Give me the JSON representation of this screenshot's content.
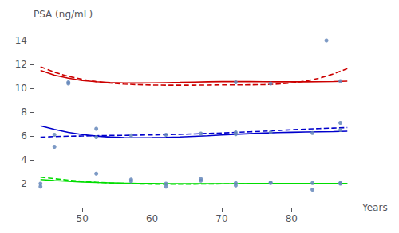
{
  "chart_data": {
    "type": "line",
    "xlabel": "Years",
    "ylabel": "PSA (ng/mL)",
    "xlim": [
      43,
      89
    ],
    "ylim": [
      0,
      15
    ],
    "xticks": [
      50,
      60,
      70,
      80
    ],
    "yticks": [
      2,
      4,
      6,
      8,
      10,
      12,
      14
    ],
    "grid": false,
    "series": [
      {
        "type": "scatter",
        "color": "#6688bb",
        "marker": "circle",
        "x": [
          44,
          44,
          46,
          46,
          48,
          48,
          52,
          52,
          52,
          57,
          57,
          57,
          62,
          62,
          62,
          67,
          67,
          67,
          72,
          72,
          72,
          72,
          72,
          77,
          77,
          77,
          77,
          83,
          83,
          83,
          85,
          87,
          87,
          87,
          87,
          87
        ],
        "values": [
          1.75,
          2.0,
          6.1,
          5.1,
          10.5,
          10.4,
          2.85,
          5.9,
          6.6,
          2.2,
          2.35,
          6.05,
          1.75,
          2.0,
          6.1,
          2.25,
          2.4,
          6.2,
          1.85,
          2.05,
          6.3,
          6.15,
          10.5,
          2.05,
          2.1,
          6.3,
          10.4,
          1.5,
          2.05,
          6.25,
          14.0,
          2.0,
          2.05,
          6.5,
          7.1,
          10.6
        ]
      },
      {
        "type": "line",
        "color": "#00dd00",
        "line_style": "solid",
        "x": [
          44,
          46,
          48,
          50,
          52,
          54,
          56,
          58,
          60,
          62,
          64,
          66,
          68,
          70,
          72,
          74,
          76,
          78,
          80,
          82,
          84,
          86,
          88
        ],
        "values": [
          2.35,
          2.27,
          2.2,
          2.14,
          2.1,
          2.07,
          2.04,
          2.02,
          2.01,
          2.0,
          1.99,
          1.99,
          1.99,
          2.0,
          2.0,
          2.01,
          2.01,
          2.02,
          2.02,
          2.02,
          2.02,
          2.02,
          2.02
        ]
      },
      {
        "type": "line",
        "color": "#00dd00",
        "line_style": "dashed",
        "x": [
          44,
          46,
          48,
          50,
          52,
          54,
          56,
          58,
          60,
          62,
          64,
          66,
          68,
          70,
          72,
          74,
          76,
          78,
          80,
          82,
          84,
          86,
          88
        ],
        "values": [
          2.55,
          2.42,
          2.3,
          2.2,
          2.12,
          2.06,
          2.01,
          1.98,
          1.96,
          1.95,
          1.95,
          1.96,
          1.97,
          1.98,
          1.99,
          2.0,
          2.0,
          2.01,
          2.01,
          2.01,
          2.02,
          2.02,
          2.02
        ]
      },
      {
        "type": "line",
        "color": "#0000cc",
        "line_style": "solid",
        "x": [
          44,
          46,
          48,
          50,
          52,
          54,
          56,
          58,
          60,
          62,
          64,
          66,
          68,
          70,
          72,
          74,
          76,
          78,
          80,
          82,
          84,
          86,
          88
        ],
        "values": [
          6.85,
          6.55,
          6.3,
          6.12,
          5.99,
          5.91,
          5.87,
          5.85,
          5.86,
          5.88,
          5.92,
          5.97,
          6.02,
          6.08,
          6.14,
          6.19,
          6.24,
          6.28,
          6.31,
          6.33,
          6.35,
          6.37,
          6.4
        ]
      },
      {
        "type": "line",
        "color": "#0000cc",
        "line_style": "dashed",
        "x": [
          44,
          46,
          48,
          50,
          52,
          54,
          56,
          58,
          60,
          62,
          64,
          66,
          68,
          70,
          72,
          74,
          76,
          78,
          80,
          82,
          84,
          86,
          88
        ],
        "values": [
          5.9,
          5.95,
          5.98,
          6.0,
          6.02,
          6.04,
          6.05,
          6.07,
          6.09,
          6.11,
          6.14,
          6.17,
          6.21,
          6.25,
          6.3,
          6.35,
          6.4,
          6.46,
          6.52,
          6.57,
          6.62,
          6.66,
          6.7
        ]
      },
      {
        "type": "line",
        "color": "#cc0000",
        "line_style": "solid",
        "x": [
          44,
          46,
          48,
          50,
          52,
          54,
          56,
          58,
          60,
          62,
          64,
          66,
          68,
          70,
          72,
          74,
          76,
          78,
          80,
          82,
          84,
          86,
          88
        ],
        "values": [
          11.5,
          11.1,
          10.85,
          10.65,
          10.55,
          10.48,
          10.45,
          10.44,
          10.45,
          10.47,
          10.49,
          10.52,
          10.54,
          10.56,
          10.56,
          10.56,
          10.55,
          10.54,
          10.54,
          10.54,
          10.55,
          10.57,
          10.6
        ]
      },
      {
        "type": "line",
        "color": "#cc0000",
        "line_style": "dashed",
        "x": [
          44,
          46,
          48,
          50,
          52,
          54,
          56,
          58,
          60,
          62,
          64,
          66,
          68,
          70,
          72,
          74,
          76,
          78,
          80,
          82,
          84,
          86,
          88
        ],
        "values": [
          11.8,
          11.35,
          11.0,
          10.75,
          10.56,
          10.43,
          10.35,
          10.3,
          10.27,
          10.26,
          10.26,
          10.26,
          10.27,
          10.28,
          10.28,
          10.29,
          10.3,
          10.35,
          10.45,
          10.6,
          10.85,
          11.2,
          11.65
        ]
      }
    ]
  }
}
